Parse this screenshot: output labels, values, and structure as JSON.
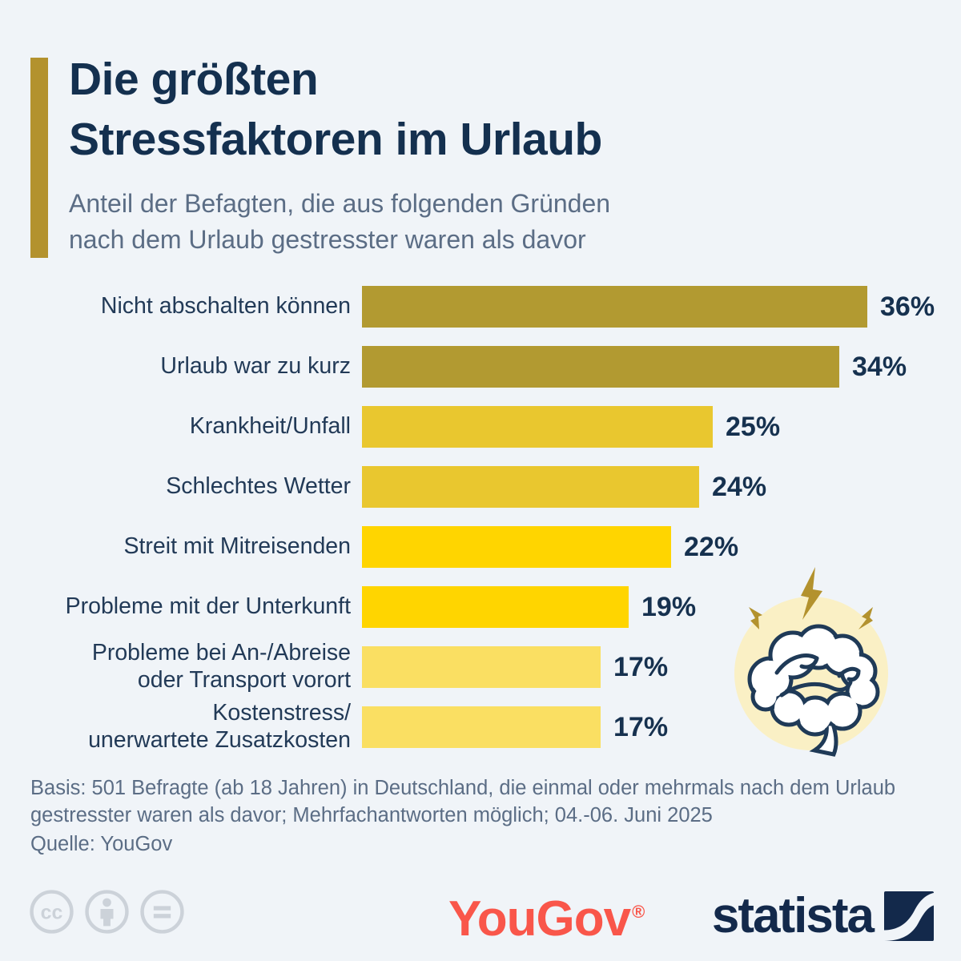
{
  "header": {
    "title": "Die größten\nStressfaktoren im Urlaub",
    "subtitle": "Anteil der Befagten, die aus folgenden Gründen\nnach dem Urlaub gestresster waren als davor"
  },
  "chart_data": {
    "type": "bar",
    "orientation": "horizontal",
    "title": "Die größten Stressfaktoren im Urlaub",
    "unit": "%",
    "grid": false,
    "value_label_position": "outside-end",
    "xlim": [
      0,
      36
    ],
    "categories": [
      "Nicht abschalten können",
      "Urlaub war zu kurz",
      "Krankheit/Unfall",
      "Schlechtes Wetter",
      "Streit mit Mitreisenden",
      "Probleme mit der Unterkunft",
      "Probleme bei An-/Abreise\noder Transport vorort",
      "Kostenstress/\nunerwartete Zusatzkosten"
    ],
    "values": [
      36,
      34,
      25,
      24,
      22,
      19,
      17,
      17
    ],
    "value_labels": [
      "36%",
      "34%",
      "25%",
      "24%",
      "22%",
      "19%",
      "17%",
      "17%"
    ],
    "bar_colors": [
      "#b29a31",
      "#b29a31",
      "#e9c72f",
      "#e9c72f",
      "#ffd500",
      "#ffd500",
      "#fadf62",
      "#fadf62"
    ]
  },
  "footnote": {
    "basis": "Basis: 501 Befragte (ab 18 Jahren) in Deutschland, die einmal oder mehrmals nach dem Urlaub\ngestresster waren als davor; Mehrfachantworten möglich; 04.-06. Juni 2025",
    "source": "Quelle: YouGov"
  },
  "branding": {
    "yougov_label": "YouGov",
    "yougov_registered": "®",
    "yougov_color": "#f9564a",
    "statista_label": "statista",
    "statista_color": "#13294b",
    "license_icons": [
      "cc",
      "attribution",
      "no-derivatives"
    ]
  },
  "colors": {
    "background": "#f0f4f8",
    "accent_bar": "#b3922e",
    "title": "#14304f",
    "subtitle": "#5b6d85",
    "value_label": "#16314f",
    "brain_circle": "#faf0c5",
    "bolt": "#b3922e",
    "brain_outline": "#1f3a57"
  }
}
